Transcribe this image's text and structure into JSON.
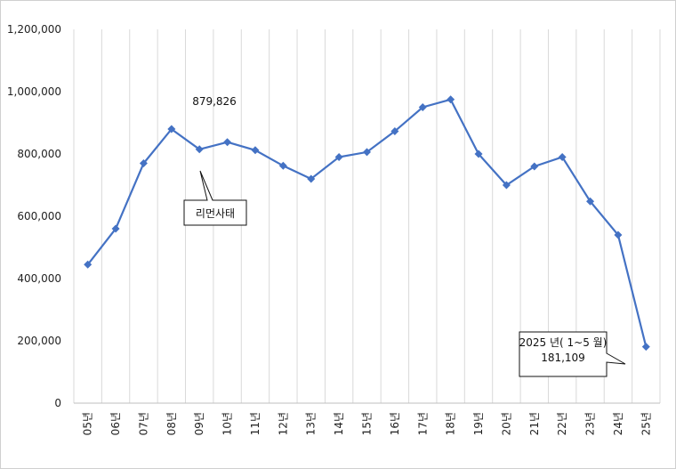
{
  "chart_data": {
    "type": "line",
    "title": "",
    "xlabel": "",
    "ylabel": "",
    "ylim": [
      0,
      1200000
    ],
    "yticks": [
      "0",
      "200,000",
      "400,000",
      "600,000",
      "800,000",
      "1,000,000",
      "1,200,000"
    ],
    "ytick_values": [
      0,
      200000,
      400000,
      600000,
      800000,
      1000000,
      1200000
    ],
    "grid": "vertical",
    "series_color": "#4472C4",
    "categories": [
      "05년",
      "06년",
      "07년",
      "08년",
      "09년",
      "10년",
      "11년",
      "12년",
      "13년",
      "14년",
      "15년",
      "16년",
      "17년",
      "18년",
      "19년",
      "20년",
      "21년",
      "22년",
      "23년",
      "24년",
      "25년"
    ],
    "values": [
      445000,
      560000,
      770000,
      879826,
      815000,
      838000,
      812000,
      762000,
      720000,
      790000,
      806000,
      873000,
      950000,
      975000,
      800000,
      700000,
      760000,
      790000,
      648000,
      540000,
      181109
    ],
    "annotations": {
      "peak_label": "879,826",
      "callout_lehman": "리먼사태",
      "callout_2025_line1": "2025 년( 1~5 월)",
      "callout_2025_line2": "181,109"
    }
  }
}
